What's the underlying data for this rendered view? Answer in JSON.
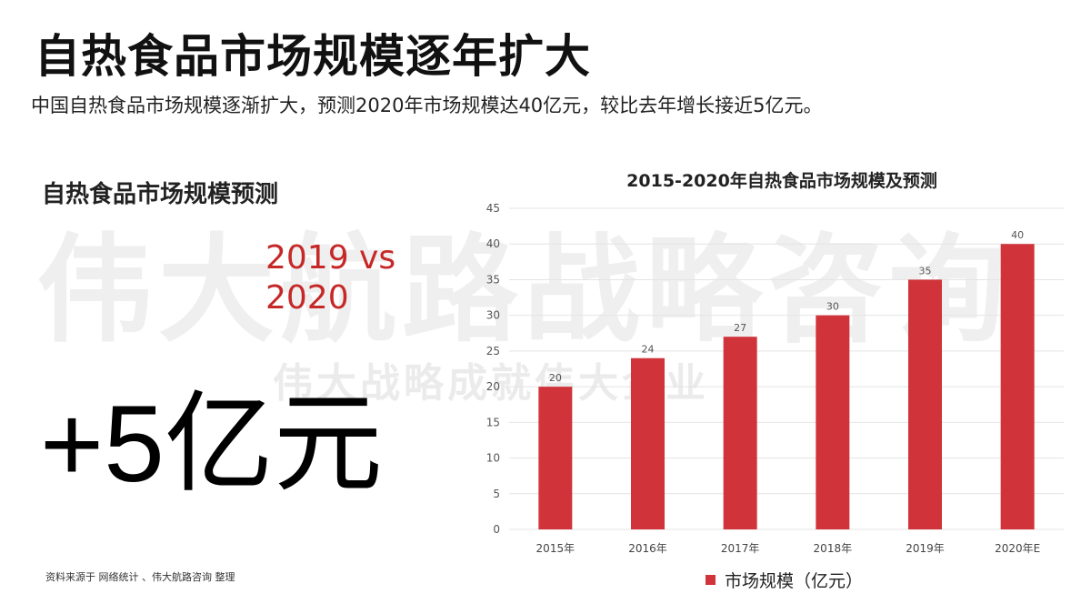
{
  "header": {
    "title": "自热食品市场规模逐年扩大",
    "subtitle": "中国自热食品市场规模逐渐扩大，预测2020年市场规模达40亿元，较比去年增长接近5亿元。"
  },
  "watermark": {
    "main": "伟大航路战略咨询",
    "slogan": "伟大战略成就伟大企业"
  },
  "left_panel": {
    "heading": "自热食品市场规模预测",
    "compare_line1": "2019 vs",
    "compare_line2": "2020",
    "delta": "+5亿元",
    "source": "资料来源于 网络统计 、伟大航路咨询 整理"
  },
  "chart_data": {
    "type": "bar",
    "title": "2015-2020年自热食品市场规模及预测",
    "categories": [
      "2015年",
      "2016年",
      "2017年",
      "2018年",
      "2019年",
      "2020年E"
    ],
    "series": [
      {
        "name": "市场规模（亿元）",
        "values": [
          20,
          24,
          27,
          30,
          35,
          40
        ],
        "color": "#d0343a"
      }
    ],
    "ylim": [
      0,
      45
    ],
    "yticks": [
      "0",
      "5",
      "10",
      "15",
      "20",
      "25",
      "30",
      "35",
      "40",
      "45"
    ],
    "data_labels": [
      "20",
      "24",
      "27",
      "30",
      "35",
      "40"
    ],
    "grid": true,
    "legend": "bottom"
  },
  "colors": {
    "accent_red": "#c62828",
    "bar_red": "#d0343a"
  }
}
